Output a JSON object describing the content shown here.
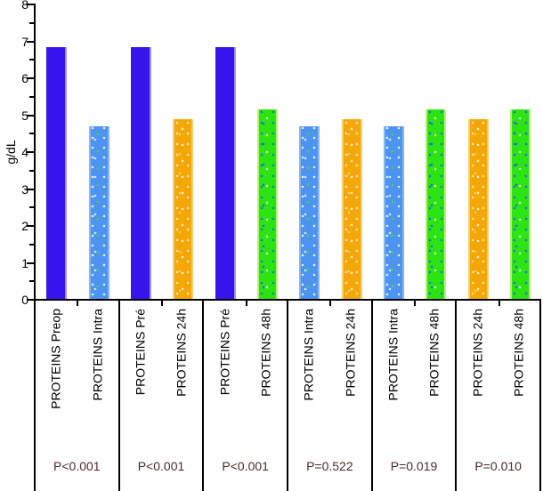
{
  "chart_data": {
    "type": "bar",
    "title": "",
    "xlabel": "",
    "ylabel": "g/dL",
    "ylim": [
      0,
      8
    ],
    "yticks": [
      0,
      1,
      2,
      3,
      4,
      5,
      6,
      7,
      8
    ],
    "minor_tick_step": 0.5,
    "grid": false,
    "legend": false,
    "bar_colors": {
      "preop": "#3713EE",
      "intra": "#4D94F0",
      "h24": "#F4A709",
      "h48": "#2BE411"
    },
    "p_value_text_color": "#4E2A24",
    "groups": [
      {
        "p_value": "P<0.001",
        "bars": [
          {
            "label": "PROTEINS Preop",
            "value": 6.85,
            "color_key": "preop"
          },
          {
            "label": "PROTEINS Intra",
            "value": 4.7,
            "color_key": "intra"
          }
        ]
      },
      {
        "p_value": "P<0.001",
        "bars": [
          {
            "label": "PROTEINS Pré",
            "value": 6.85,
            "color_key": "preop"
          },
          {
            "label": "PROTEINS 24h",
            "value": 4.9,
            "color_key": "h24"
          }
        ]
      },
      {
        "p_value": "P<0.001",
        "bars": [
          {
            "label": "PROTEINS Pré",
            "value": 6.85,
            "color_key": "preop"
          },
          {
            "label": "PROTEINS 48h",
            "value": 5.15,
            "color_key": "h48"
          }
        ]
      },
      {
        "p_value": "P=0.522",
        "bars": [
          {
            "label": "PROTEINS Intra",
            "value": 4.7,
            "color_key": "intra"
          },
          {
            "label": "PROTEINS 24h",
            "value": 4.9,
            "color_key": "h24"
          }
        ]
      },
      {
        "p_value": "P=0.019",
        "bars": [
          {
            "label": "PROTEINS Intra",
            "value": 4.7,
            "color_key": "intra"
          },
          {
            "label": "PROTEINS 48h",
            "value": 5.15,
            "color_key": "h48"
          }
        ]
      },
      {
        "p_value": "P=0.010",
        "bars": [
          {
            "label": "PROTEINS 24h",
            "value": 4.9,
            "color_key": "h24"
          },
          {
            "label": "PROTEINS 48h",
            "value": 5.15,
            "color_key": "h48"
          }
        ]
      }
    ]
  }
}
